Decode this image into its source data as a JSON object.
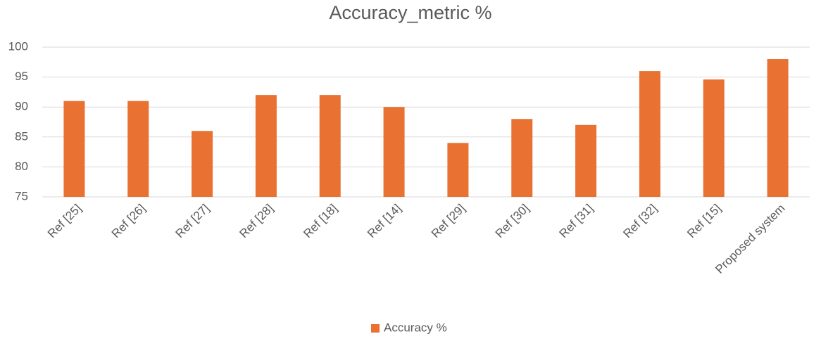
{
  "chart_data": {
    "type": "bar",
    "title": "Accuracy_metric %",
    "categories": [
      "Ref [25]",
      "Ref [26]",
      "Ref [27]",
      "Ref [28]",
      "Ref [18]",
      "Ref [14]",
      "Ref [29]",
      "Ref [30]",
      "Ref [31]",
      "Ref [32]",
      "Ref [15]",
      "Proposed system"
    ],
    "series": [
      {
        "name": "Accuracy %",
        "color": "#e97132",
        "values": [
          91,
          91,
          86,
          92,
          92,
          90,
          84,
          88,
          87,
          96,
          94.6,
          98
        ]
      }
    ],
    "ylim": [
      75,
      100
    ],
    "yticks": [
      75,
      80,
      85,
      90,
      95,
      100
    ],
    "grid": true,
    "legend": "bottom"
  }
}
